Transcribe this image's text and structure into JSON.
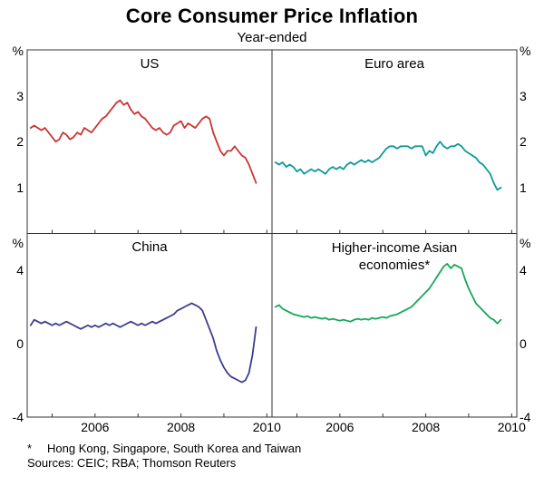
{
  "footnotes": {
    "marker": "*",
    "note": "Hong Kong, Singapore, South Korea and Taiwan",
    "sources": "Sources: CEIC; RBA; Thomson Reuters"
  },
  "chart_data": {
    "type": "line",
    "title": "Core Consumer Price Inflation",
    "subtitle": "Year-ended",
    "layout": "2x2-panels-shared-axes",
    "grid": false,
    "legend": "none (panel titles)",
    "frame_color": "#333333",
    "x_domain": [
      2004.42,
      2010.12
    ],
    "x_ticks": [
      2006,
      2008,
      2010
    ],
    "x_start": 2004.5,
    "x_step_years": 0.083333,
    "rows": [
      {
        "unit": "%",
        "ylim": [
          0,
          4
        ],
        "yticks": [
          1,
          2,
          3
        ]
      },
      {
        "unit": "%",
        "ylim": [
          -4,
          6
        ],
        "yticks": [
          -4,
          0,
          4
        ]
      }
    ],
    "panels": [
      {
        "id": "us",
        "title": "US",
        "row": 0,
        "col": 0,
        "color": "#cc3333",
        "values": [
          2.3,
          2.35,
          2.3,
          2.25,
          2.3,
          2.2,
          2.1,
          2.0,
          2.05,
          2.2,
          2.15,
          2.05,
          2.1,
          2.2,
          2.15,
          2.3,
          2.25,
          2.2,
          2.3,
          2.4,
          2.5,
          2.55,
          2.65,
          2.75,
          2.85,
          2.9,
          2.8,
          2.85,
          2.7,
          2.6,
          2.65,
          2.55,
          2.5,
          2.4,
          2.3,
          2.25,
          2.3,
          2.2,
          2.15,
          2.2,
          2.35,
          2.4,
          2.45,
          2.3,
          2.4,
          2.35,
          2.3,
          2.4,
          2.5,
          2.55,
          2.5,
          2.2,
          2.0,
          1.8,
          1.7,
          1.8,
          1.8,
          1.9,
          1.8,
          1.7,
          1.65,
          1.5,
          1.3,
          1.1
        ]
      },
      {
        "id": "euro-area",
        "title": "Euro area",
        "row": 0,
        "col": 1,
        "color": "#0e9a9a",
        "values": [
          1.55,
          1.5,
          1.55,
          1.45,
          1.5,
          1.45,
          1.35,
          1.4,
          1.3,
          1.35,
          1.4,
          1.35,
          1.4,
          1.35,
          1.3,
          1.4,
          1.45,
          1.4,
          1.45,
          1.4,
          1.5,
          1.55,
          1.5,
          1.55,
          1.6,
          1.55,
          1.6,
          1.55,
          1.6,
          1.65,
          1.75,
          1.85,
          1.9,
          1.9,
          1.85,
          1.9,
          1.9,
          1.9,
          1.85,
          1.9,
          1.9,
          1.9,
          1.7,
          1.8,
          1.75,
          1.9,
          2.0,
          1.9,
          1.85,
          1.9,
          1.9,
          1.95,
          1.9,
          1.8,
          1.75,
          1.7,
          1.65,
          1.55,
          1.5,
          1.4,
          1.3,
          1.1,
          0.95,
          1.0
        ]
      },
      {
        "id": "china",
        "title": "China",
        "row": 1,
        "col": 0,
        "color": "#3d3d8f",
        "values": [
          1.0,
          1.3,
          1.2,
          1.1,
          1.2,
          1.1,
          1.0,
          1.1,
          1.0,
          1.1,
          1.2,
          1.1,
          1.0,
          0.9,
          0.8,
          0.9,
          1.0,
          0.9,
          1.0,
          0.9,
          1.0,
          1.1,
          1.0,
          1.1,
          1.0,
          0.9,
          1.0,
          1.1,
          1.2,
          1.1,
          1.0,
          1.1,
          1.0,
          1.1,
          1.2,
          1.1,
          1.2,
          1.3,
          1.4,
          1.5,
          1.6,
          1.8,
          1.9,
          2.0,
          2.1,
          2.2,
          2.1,
          2.0,
          1.8,
          1.3,
          0.8,
          0.3,
          -0.4,
          -0.9,
          -1.3,
          -1.6,
          -1.8,
          -1.9,
          -2.0,
          -2.1,
          -2.0,
          -1.6,
          -0.6,
          0.9
        ]
      },
      {
        "id": "higher-income-asia",
        "title": "Higher-income Asian economies*",
        "title_lines": [
          "Higher-income Asian",
          "economies*"
        ],
        "row": 1,
        "col": 1,
        "color": "#17a65a",
        "values": [
          2.0,
          2.1,
          1.9,
          1.8,
          1.7,
          1.6,
          1.55,
          1.5,
          1.45,
          1.5,
          1.4,
          1.45,
          1.4,
          1.35,
          1.4,
          1.3,
          1.35,
          1.3,
          1.25,
          1.3,
          1.25,
          1.2,
          1.3,
          1.35,
          1.3,
          1.35,
          1.3,
          1.4,
          1.35,
          1.4,
          1.45,
          1.4,
          1.5,
          1.55,
          1.6,
          1.7,
          1.8,
          1.9,
          2.0,
          2.2,
          2.4,
          2.6,
          2.8,
          3.0,
          3.3,
          3.6,
          3.9,
          4.2,
          4.35,
          4.1,
          4.3,
          4.2,
          4.1,
          3.5,
          3.0,
          2.6,
          2.2,
          2.0,
          1.8,
          1.6,
          1.4,
          1.3,
          1.1,
          1.3
        ]
      }
    ]
  }
}
